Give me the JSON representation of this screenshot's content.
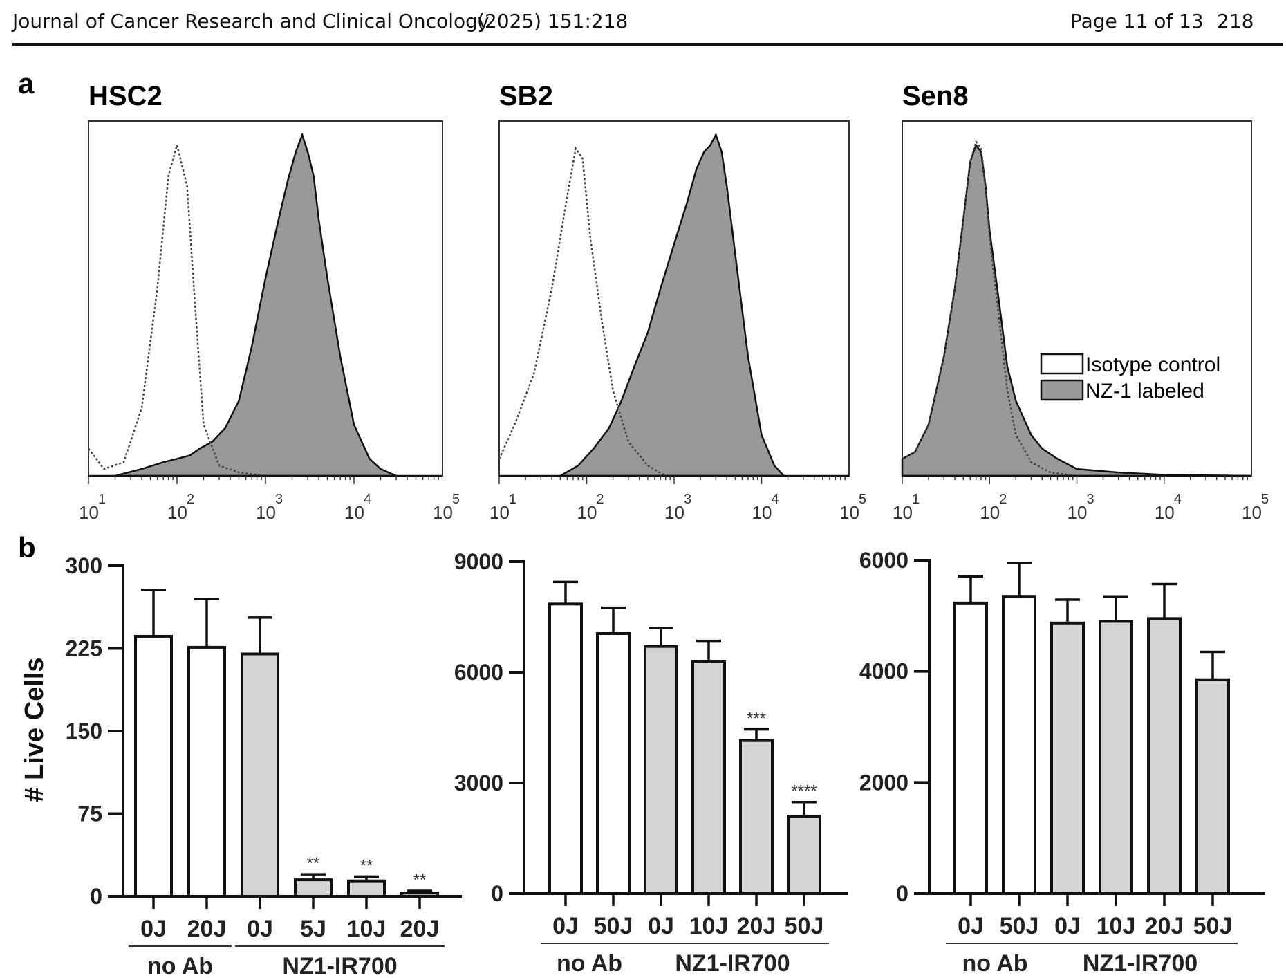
{
  "header": {
    "journal": "Journal of Cancer Research and Clinical Oncology",
    "citation": "(2025) 151:218",
    "page": "Page 11 of 13",
    "page_number": "218"
  },
  "panel_labels": {
    "a": "a",
    "b": "b"
  },
  "legend": {
    "isotype": "Isotype control",
    "labeled": "NZ-1 labeled"
  },
  "chart_data": [
    {
      "type": "area",
      "title": "HSC2",
      "x_scale": "log",
      "xlim": [
        10,
        100000
      ],
      "xticks": [
        10,
        100,
        1000,
        10000,
        100000
      ],
      "series": [
        {
          "name": "Isotype control",
          "style": "dotted-outline",
          "x": [
            10,
            15,
            25,
            40,
            60,
            80,
            100,
            130,
            160,
            200,
            300,
            500,
            1000
          ],
          "y": [
            0.08,
            0.02,
            0.04,
            0.2,
            0.55,
            0.88,
            0.97,
            0.85,
            0.5,
            0.15,
            0.03,
            0.01,
            0
          ]
        },
        {
          "name": "NZ-1 labeled",
          "style": "filled-gray",
          "x": [
            20,
            40,
            70,
            100,
            140,
            180,
            250,
            350,
            500,
            700,
            1000,
            1400,
            1800,
            2200,
            2600,
            3000,
            3500,
            4000,
            5000,
            7000,
            10000,
            15000,
            20000,
            30000
          ],
          "y": [
            0,
            0.02,
            0.04,
            0.05,
            0.06,
            0.08,
            0.1,
            0.14,
            0.22,
            0.38,
            0.58,
            0.75,
            0.87,
            0.95,
            1.0,
            0.95,
            0.88,
            0.75,
            0.58,
            0.35,
            0.15,
            0.05,
            0.02,
            0
          ]
        }
      ]
    },
    {
      "type": "area",
      "title": "SB2",
      "x_scale": "log",
      "xlim": [
        10,
        100000
      ],
      "xticks": [
        10,
        100,
        1000,
        10000,
        100000
      ],
      "series": [
        {
          "name": "Isotype control",
          "style": "dotted-outline",
          "x": [
            10,
            15,
            25,
            40,
            60,
            75,
            90,
            110,
            150,
            200,
            300,
            500,
            800
          ],
          "y": [
            0.05,
            0.15,
            0.3,
            0.55,
            0.82,
            0.96,
            0.93,
            0.7,
            0.45,
            0.25,
            0.1,
            0.03,
            0
          ]
        },
        {
          "name": "NZ-1 labeled",
          "style": "filled-gray",
          "x": [
            50,
            80,
            120,
            180,
            250,
            350,
            500,
            700,
            1000,
            1400,
            1800,
            2200,
            2600,
            3000,
            3500,
            4000,
            5000,
            7000,
            10000,
            14000,
            18000
          ],
          "y": [
            0,
            0.03,
            0.08,
            0.14,
            0.22,
            0.32,
            0.42,
            0.55,
            0.68,
            0.8,
            0.9,
            0.95,
            0.97,
            1.0,
            0.95,
            0.85,
            0.65,
            0.35,
            0.12,
            0.03,
            0
          ]
        }
      ]
    },
    {
      "type": "area",
      "title": "Sen8",
      "x_scale": "log",
      "xlim": [
        10,
        100000
      ],
      "xticks": [
        10,
        100,
        1000,
        10000,
        100000
      ],
      "series": [
        {
          "name": "Isotype control",
          "style": "dotted-outline",
          "x": [
            10,
            14,
            20,
            30,
            40,
            50,
            60,
            70,
            80,
            90,
            100,
            130,
            160,
            200,
            300,
            500,
            1000
          ],
          "y": [
            0.05,
            0.07,
            0.15,
            0.35,
            0.55,
            0.75,
            0.92,
            0.98,
            0.96,
            0.85,
            0.7,
            0.45,
            0.25,
            0.12,
            0.04,
            0.01,
            0
          ]
        },
        {
          "name": "NZ-1 labeled",
          "style": "filled-gray",
          "x": [
            10,
            14,
            20,
            30,
            40,
            50,
            60,
            70,
            80,
            90,
            100,
            130,
            160,
            200,
            300,
            400,
            600,
            1000,
            3000,
            10000,
            100000
          ],
          "y": [
            0.05,
            0.07,
            0.15,
            0.35,
            0.55,
            0.75,
            0.92,
            0.97,
            0.95,
            0.85,
            0.72,
            0.5,
            0.32,
            0.22,
            0.12,
            0.08,
            0.05,
            0.02,
            0.01,
            0.003,
            0
          ]
        }
      ]
    },
    {
      "type": "bar",
      "title": "",
      "ylabel": "# Live Cells",
      "ylim": [
        0,
        300
      ],
      "yticks": [
        0,
        75,
        150,
        225,
        300
      ],
      "categories": [
        "0J",
        "20J",
        "0J",
        "5J",
        "10J",
        "20J"
      ],
      "groups": [
        {
          "label": "no Ab",
          "count": 2
        },
        {
          "label": "NZ1-IR700",
          "count": 4
        }
      ],
      "values": [
        236,
        226,
        220,
        15,
        14,
        3
      ],
      "errors": [
        42,
        44,
        33,
        5,
        4,
        2
      ],
      "fills": [
        "white",
        "white",
        "gray",
        "gray",
        "gray",
        "gray"
      ],
      "significance": [
        "",
        "",
        "",
        "**",
        "**",
        "**"
      ]
    },
    {
      "type": "bar",
      "title": "",
      "ylabel": "",
      "ylim": [
        0,
        9000
      ],
      "yticks": [
        0,
        3000,
        6000,
        9000
      ],
      "categories": [
        "0J",
        "50J",
        "0J",
        "10J",
        "20J",
        "50J"
      ],
      "groups": [
        {
          "label": "no Ab",
          "count": 2
        },
        {
          "label": "NZ1-IR700",
          "count": 4
        }
      ],
      "values": [
        7850,
        7050,
        6700,
        6300,
        4150,
        2100
      ],
      "errors": [
        600,
        700,
        500,
        550,
        300,
        380
      ],
      "fills": [
        "white",
        "white",
        "gray",
        "gray",
        "gray",
        "gray"
      ],
      "significance": [
        "",
        "",
        "",
        "",
        "***",
        "****"
      ]
    },
    {
      "type": "bar",
      "title": "",
      "ylabel": "",
      "ylim": [
        0,
        6000
      ],
      "yticks": [
        0,
        2000,
        4000,
        6000
      ],
      "categories": [
        "0J",
        "50J",
        "0J",
        "10J",
        "20J",
        "50J"
      ],
      "groups": [
        {
          "label": "no Ab",
          "count": 2
        },
        {
          "label": "NZ1-IR700",
          "count": 4
        }
      ],
      "values": [
        5230,
        5350,
        4870,
        4900,
        4950,
        3850
      ],
      "errors": [
        480,
        600,
        420,
        450,
        620,
        500
      ],
      "fills": [
        "white",
        "white",
        "gray",
        "gray",
        "gray",
        "gray"
      ],
      "significance": [
        "",
        "",
        "",
        "",
        "",
        ""
      ]
    }
  ]
}
